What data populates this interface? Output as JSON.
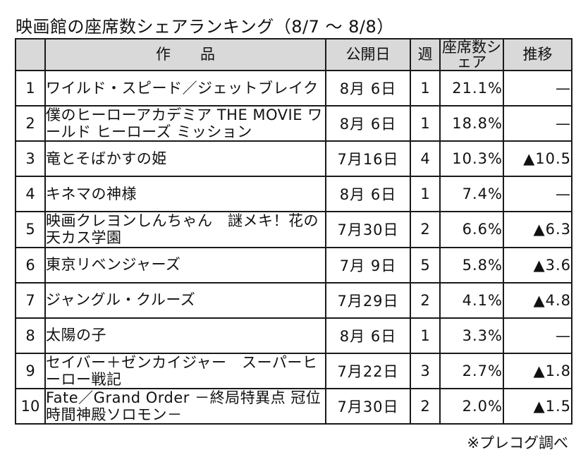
{
  "title": "映画館の座席数シェアランキング（8/7 ～ 8/8）",
  "columns": {
    "rank": "",
    "title": "作　　品",
    "release": "公開日",
    "weeks": "週",
    "share": "座席数シェア",
    "trend": "推移"
  },
  "rows": [
    {
      "rank": "1",
      "title": "ワイルド・スピード／ジェットブレイク",
      "release": "8月 6日",
      "weeks": "1",
      "share": "21.1%",
      "trend": "—"
    },
    {
      "rank": "2",
      "title": "僕のヒーローアカデミア THE MOVIE ワールド ヒーローズ ミッション",
      "release": "8月 6日",
      "weeks": "1",
      "share": "18.8%",
      "trend": "—"
    },
    {
      "rank": "3",
      "title": "竜とそばかすの姫",
      "release": "7月16日",
      "weeks": "4",
      "share": "10.3%",
      "trend": "▲10.5"
    },
    {
      "rank": "4",
      "title": "キネマの神様",
      "release": "8月 6日",
      "weeks": "1",
      "share": "7.4%",
      "trend": "—"
    },
    {
      "rank": "5",
      "title": "映画クレヨンしんちゃん　謎メキ！花の天カス学園",
      "release": "7月30日",
      "weeks": "2",
      "share": "6.6%",
      "trend": "▲6.3"
    },
    {
      "rank": "6",
      "title": "東京リベンジャーズ",
      "release": "7月 9日",
      "weeks": "5",
      "share": "5.8%",
      "trend": "▲3.6"
    },
    {
      "rank": "7",
      "title": "ジャングル・クルーズ",
      "release": "7月29日",
      "weeks": "2",
      "share": "4.1%",
      "trend": "▲4.8"
    },
    {
      "rank": "8",
      "title": "太陽の子",
      "release": "8月 6日",
      "weeks": "1",
      "share": "3.3%",
      "trend": "—"
    },
    {
      "rank": "9",
      "title": "セイバー＋ゼンカイジャー　スーパーヒーロー戦記",
      "release": "7月22日",
      "weeks": "3",
      "share": "2.7%",
      "trend": "▲1.8"
    },
    {
      "rank": "10",
      "title": "Fate／Grand Order －終局特異点 冠位時間神殿ソロモン－",
      "release": "7月30日",
      "weeks": "2",
      "share": "2.0%",
      "trend": "▲1.5"
    }
  ],
  "source": "※プレコグ調べ"
}
